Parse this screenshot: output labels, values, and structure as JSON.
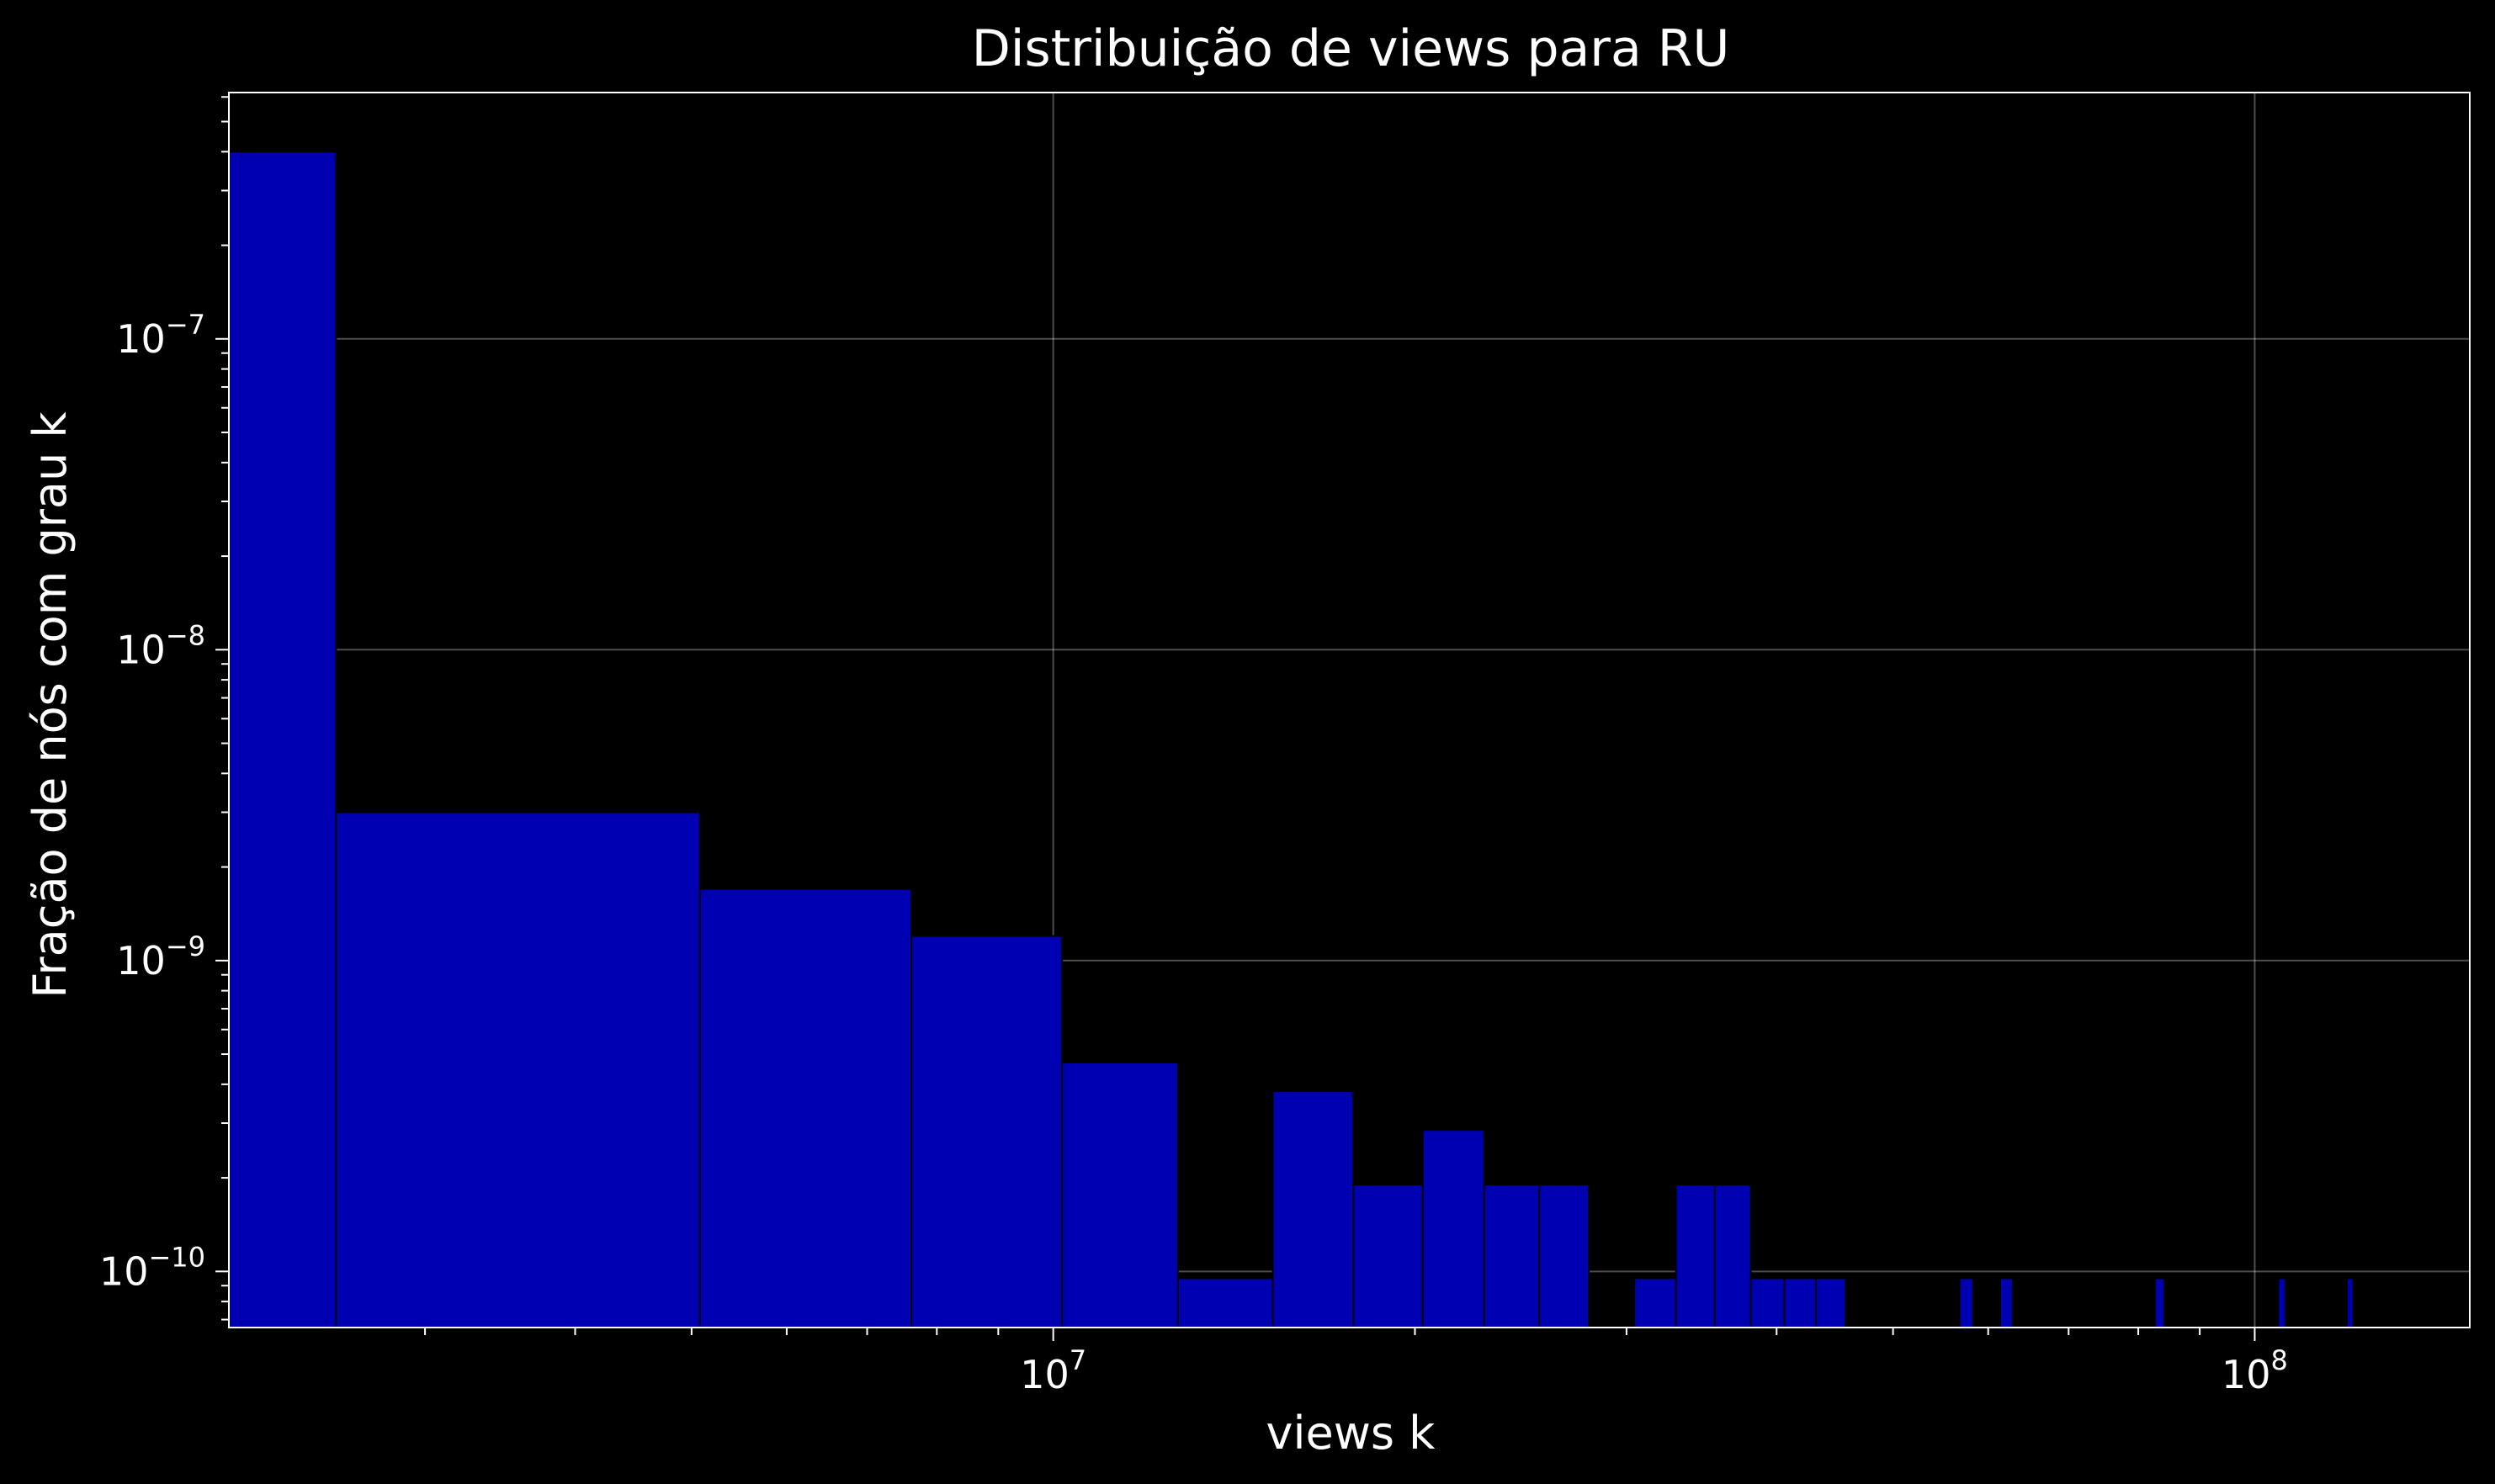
{
  "chart_data": {
    "type": "bar",
    "title": "Distribuição de views para RU",
    "xlabel": "views k",
    "ylabel": "Fração de nós com grau k",
    "x_scale": "log",
    "y_scale": "log",
    "xlim": [
      2060000,
      151000000
    ],
    "ylim": [
      6.6e-11,
      6.2e-07
    ],
    "grid": true,
    "bar_color": "#0000b3",
    "edge_color": "#000000",
    "x_ticks": [
      {
        "value": 10000000,
        "base": "10",
        "exp": "7"
      },
      {
        "value": 100000000,
        "base": "10",
        "exp": "8"
      }
    ],
    "y_ticks": [
      {
        "value": 1e-07,
        "base": "10",
        "exp": "−7"
      },
      {
        "value": 1e-08,
        "base": "10",
        "exp": "−8"
      },
      {
        "value": 1e-09,
        "base": "10",
        "exp": "−9"
      },
      {
        "value": 1e-10,
        "base": "10",
        "exp": "−10"
      }
    ],
    "bars": [
      {
        "x0": 2060000,
        "x1": 2530000,
        "value": 4e-07
      },
      {
        "x0": 2530000,
        "x1": 5080000,
        "value": 3e-09
      },
      {
        "x0": 5080000,
        "x1": 7620000,
        "value": 1.7e-09
      },
      {
        "x0": 7620000,
        "x1": 10170000,
        "value": 1.2e-09
      },
      {
        "x0": 10170000,
        "x1": 12700000,
        "value": 4.7e-10
      },
      {
        "x0": 12700000,
        "x1": 15230000,
        "value": 9.5e-11
      },
      {
        "x0": 15230000,
        "x1": 17770000,
        "value": 3.8e-10
      },
      {
        "x0": 17770000,
        "x1": 20300000,
        "value": 1.9e-10
      },
      {
        "x0": 20300000,
        "x1": 22840000,
        "value": 2.85e-10
      },
      {
        "x0": 22840000,
        "x1": 25380000,
        "value": 1.9e-10
      },
      {
        "x0": 25380000,
        "x1": 27910000,
        "value": 1.9e-10
      },
      {
        "x0": 30450000,
        "x1": 32980000,
        "value": 9.5e-11
      },
      {
        "x0": 32980000,
        "x1": 35530000,
        "value": 1.9e-10
      },
      {
        "x0": 35530000,
        "x1": 38070000,
        "value": 1.9e-10
      },
      {
        "x0": 38070000,
        "x1": 40600000,
        "value": 9.5e-11
      },
      {
        "x0": 40600000,
        "x1": 43140000,
        "value": 9.5e-11
      },
      {
        "x0": 43140000,
        "x1": 45670000,
        "value": 9.5e-11
      },
      {
        "x0": 56800000,
        "x1": 58300000,
        "value": 9.5e-11
      },
      {
        "x0": 61400000,
        "x1": 62900000,
        "value": 9.5e-11
      },
      {
        "x0": 82600000,
        "x1": 84100000,
        "value": 9.5e-11
      },
      {
        "x0": 104600000,
        "x1": 106100000,
        "value": 9.5e-11
      },
      {
        "x0": 119300000,
        "x1": 120800000,
        "value": 9.5e-11
      }
    ]
  }
}
